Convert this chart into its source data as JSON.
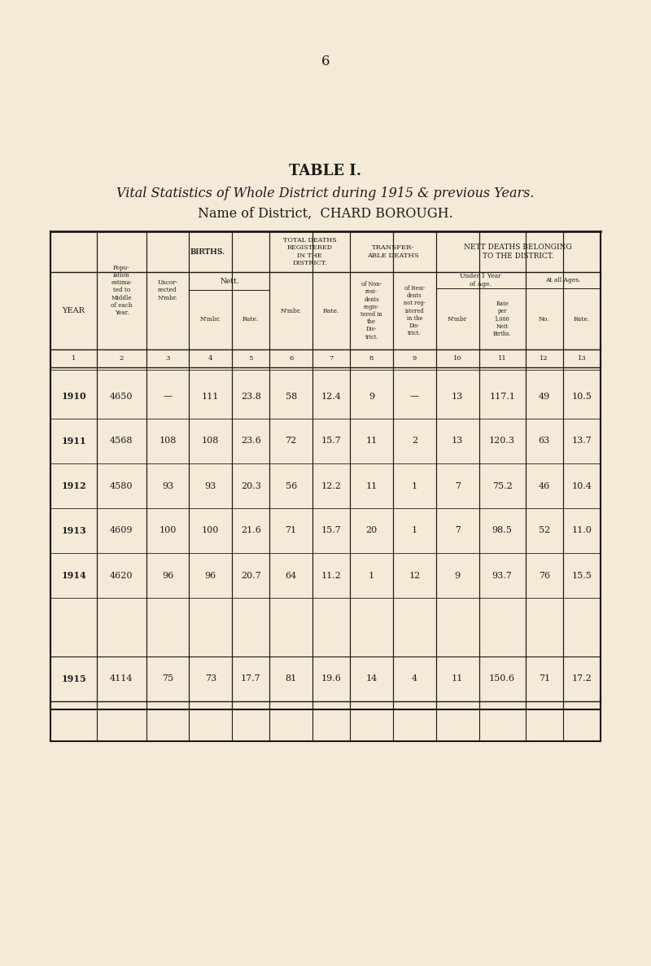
{
  "page_number": "6",
  "title_line1": "TABLE I.",
  "title_line2": "Vital Statistics of Whole District during 1915 & previous Years.",
  "title_line3": "Name of District,  CHARD BOROUGH.",
  "bg_color": "#f5ead8",
  "rows": [
    {
      "year": "1910",
      "pop": "4650",
      "uncorr": "—",
      "nett_n": "111",
      "nett_r": "23.8",
      "td_n": "58",
      "td_r": "12.4",
      "nonres": "9",
      "res": "—",
      "u1_n": "13",
      "u1_r": "117.1",
      "all_n": "49",
      "all_r": "10.5"
    },
    {
      "year": "1911",
      "pop": "4568",
      "uncorr": "108",
      "nett_n": "108",
      "nett_r": "23.6",
      "td_n": "72",
      "td_r": "15.7",
      "nonres": "11",
      "res": "2",
      "u1_n": "13",
      "u1_r": "120.3",
      "all_n": "63",
      "all_r": "13.7"
    },
    {
      "year": "1912",
      "pop": "4580",
      "uncorr": "93",
      "nett_n": "93",
      "nett_r": "20.3",
      "td_n": "56",
      "td_r": "12.2",
      "nonres": "11",
      "res": "1",
      "u1_n": "7",
      "u1_r": "75.2",
      "all_n": "46",
      "all_r": "10.4"
    },
    {
      "year": "1913",
      "pop": "4609",
      "uncorr": "100",
      "nett_n": "100",
      "nett_r": "21.6",
      "td_n": "71",
      "td_r": "15.7",
      "nonres": "20",
      "res": "1",
      "u1_n": "7",
      "u1_r": "98.5",
      "all_n": "52",
      "all_r": "11.0"
    },
    {
      "year": "1914",
      "pop": "4620",
      "uncorr": "96",
      "nett_n": "96",
      "nett_r": "20.7",
      "td_n": "64",
      "td_r": "11.2",
      "nonres": "1",
      "res": "12",
      "u1_n": "9",
      "u1_r": "93.7",
      "all_n": "76",
      "all_r": "15.5"
    },
    {
      "year": "1915",
      "pop": "4114",
      "uncorr": "75",
      "nett_n": "73",
      "nett_r": "17.7",
      "td_n": "81",
      "td_r": "19.6",
      "nonres": "14",
      "res": "4",
      "u1_n": "11",
      "u1_r": "150.6",
      "all_n": "71",
      "all_r": "17.2"
    }
  ]
}
